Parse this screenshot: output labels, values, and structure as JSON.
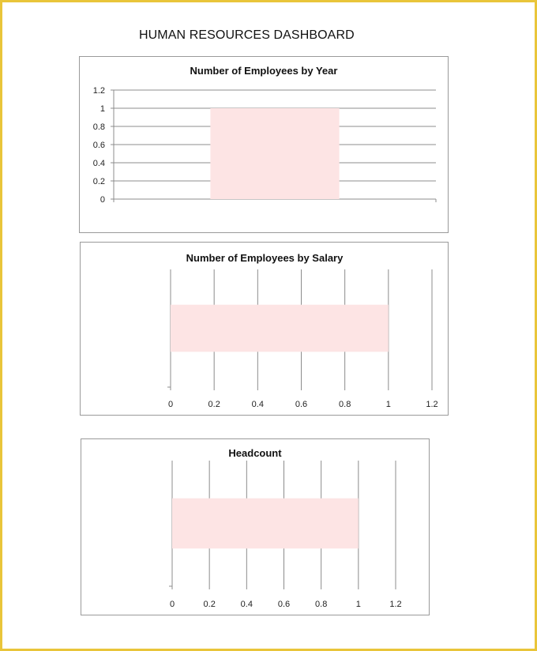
{
  "page": {
    "title": "HUMAN RESOURCES DASHBOARD",
    "colors": {
      "frame": "#e9c53a",
      "bar": "#fde4e4"
    }
  },
  "chart_data": [
    {
      "type": "bar",
      "orientation": "vertical",
      "title": "Number of Employees by Year",
      "categories": [
        ""
      ],
      "values": [
        1
      ],
      "xlabel": "",
      "ylabel": "",
      "ylim": [
        0,
        1.2
      ],
      "yticks": [
        "0",
        "0.2",
        "0.4",
        "0.6",
        "0.8",
        "1",
        "1.2"
      ],
      "grid": true
    },
    {
      "type": "bar",
      "orientation": "horizontal",
      "title": "Number of Employees by Salary",
      "categories": [
        ""
      ],
      "values": [
        1
      ],
      "xlim": [
        0,
        1.2
      ],
      "xticks": [
        "0",
        "0.2",
        "0.4",
        "0.6",
        "0.8",
        "1",
        "1.2"
      ],
      "grid": true
    },
    {
      "type": "bar",
      "orientation": "horizontal",
      "title": "Headcount",
      "categories": [
        ""
      ],
      "values": [
        1
      ],
      "xlim": [
        0,
        1.2
      ],
      "xticks": [
        "0",
        "0.2",
        "0.4",
        "0.6",
        "0.8",
        "1",
        "1.2"
      ],
      "grid": true
    }
  ]
}
